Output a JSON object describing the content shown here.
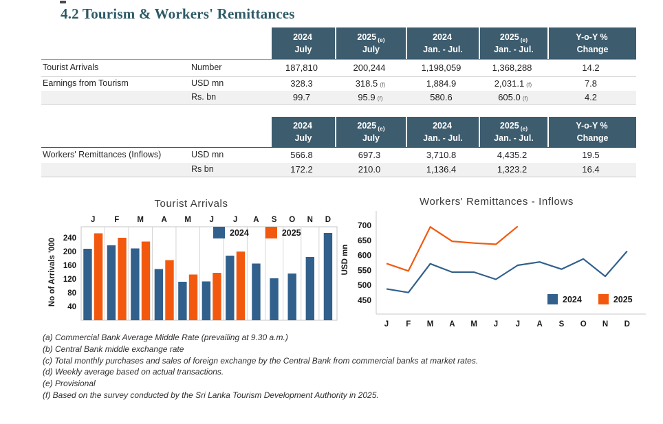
{
  "page": {
    "title": "4.2 Tourism & Workers' Remittances"
  },
  "tables": [
    {
      "headers": [
        {
          "line1": "2024",
          "sup": "",
          "line2": "July"
        },
        {
          "line1": "2025",
          "sup": "(e)",
          "line2": "July"
        },
        {
          "line1": "2024",
          "sup": "",
          "line2": "Jan. - Jul."
        },
        {
          "line1": "2025",
          "sup": "(e)",
          "line2": "Jan. - Jul."
        },
        {
          "line1": "Y-o-Y %",
          "sup": "",
          "line2": "Change"
        }
      ],
      "rows": [
        {
          "label": "Tourist Arrivals",
          "unit": "Number",
          "values": [
            "187,810",
            "200,244",
            "1,198,059",
            "1,368,288",
            "14.2"
          ],
          "sups": [
            "",
            "",
            "",
            "",
            ""
          ]
        },
        {
          "label": "Earnings from Tourism",
          "unit": "USD mn",
          "values": [
            "328.3",
            "318.5",
            "1,884.9",
            "2,031.1",
            "7.8"
          ],
          "sups": [
            "",
            "(f)",
            "",
            "(f)",
            ""
          ]
        },
        {
          "label": "",
          "unit": "Rs. bn",
          "values": [
            "99.7",
            "95.9",
            "580.6",
            "605.0",
            "4.2"
          ],
          "sups": [
            "",
            "(f)",
            "",
            "(f)",
            ""
          ]
        }
      ]
    },
    {
      "headers": [
        {
          "line1": "2024",
          "sup": "",
          "line2": "July"
        },
        {
          "line1": "2025",
          "sup": "(e)",
          "line2": "July"
        },
        {
          "line1": "2024",
          "sup": "",
          "line2": "Jan. - Jul."
        },
        {
          "line1": "2025",
          "sup": "(e)",
          "line2": "Jan. - Jul."
        },
        {
          "line1": "Y-o-Y %",
          "sup": "",
          "line2": "Change"
        }
      ],
      "rows": [
        {
          "label": "Workers' Remittances (Inflows)",
          "unit": "USD mn",
          "values": [
            "566.8",
            "697.3",
            "3,710.8",
            "4,435.2",
            "19.5"
          ],
          "sups": [
            "",
            "",
            "",
            "",
            ""
          ]
        },
        {
          "label": "",
          "unit": "Rs bn",
          "values": [
            "172.2",
            "210.0",
            "1,136.4",
            "1,323.2",
            "16.4"
          ],
          "sups": [
            "",
            "",
            "",
            "",
            ""
          ]
        }
      ]
    }
  ],
  "chart_data": [
    {
      "type": "bar",
      "title": "Tourist Arrivals",
      "ylabel": "No of Arrivals '000",
      "categories": [
        "J",
        "F",
        "M",
        "A",
        "M",
        "J",
        "J",
        "A",
        "S",
        "O",
        "N",
        "D"
      ],
      "yticks": [
        40,
        80,
        120,
        160,
        200,
        240
      ],
      "ylim": [
        0,
        272
      ],
      "grid": "vertical-group-separators",
      "legend_position": "top-right",
      "series": [
        {
          "name": "2024",
          "color": "#31608C",
          "values": [
            208,
            218,
            209,
            149,
            112,
            113,
            188,
            165,
            122,
            136,
            184,
            254
          ]
        },
        {
          "name": "2025",
          "color": "#F3590E",
          "values": [
            253,
            240,
            229,
            175,
            133,
            138,
            200,
            null,
            null,
            null,
            null,
            null
          ]
        }
      ]
    },
    {
      "type": "line",
      "title": "Workers' Remittances  - Inflows",
      "ylabel": "USD mn",
      "categories": [
        "J",
        "F",
        "M",
        "A",
        "M",
        "J",
        "J",
        "A",
        "S",
        "O",
        "N",
        "D"
      ],
      "yticks": [
        450,
        500,
        550,
        600,
        650,
        700
      ],
      "ylim": [
        405,
        730
      ],
      "grid": "off",
      "legend_position": "bottom-right",
      "series": [
        {
          "name": "2024",
          "color": "#31608C",
          "values": [
            488,
            476,
            572,
            544,
            544,
            520,
            567,
            578,
            554,
            588,
            530,
            614
          ]
        },
        {
          "name": "2025",
          "color": "#F3590E",
          "values": [
            573,
            548,
            695,
            647,
            641,
            637,
            697,
            null,
            null,
            null,
            null,
            null
          ]
        }
      ]
    }
  ],
  "footnotes": [
    "(a) Commercial Bank Average Middle Rate (prevailing at 9.30 a.m.)",
    "(b) Central Bank middle exchange rate",
    "(c) Total monthly purchases and sales of foreign exchange by the Central Bank from commercial banks at market rates.",
    "(d) Weekly average based on actual transactions.",
    "(e) Provisional",
    "(f) Based on the survey conducted by the Sri Lanka Tourism Development Authority in 2025."
  ]
}
